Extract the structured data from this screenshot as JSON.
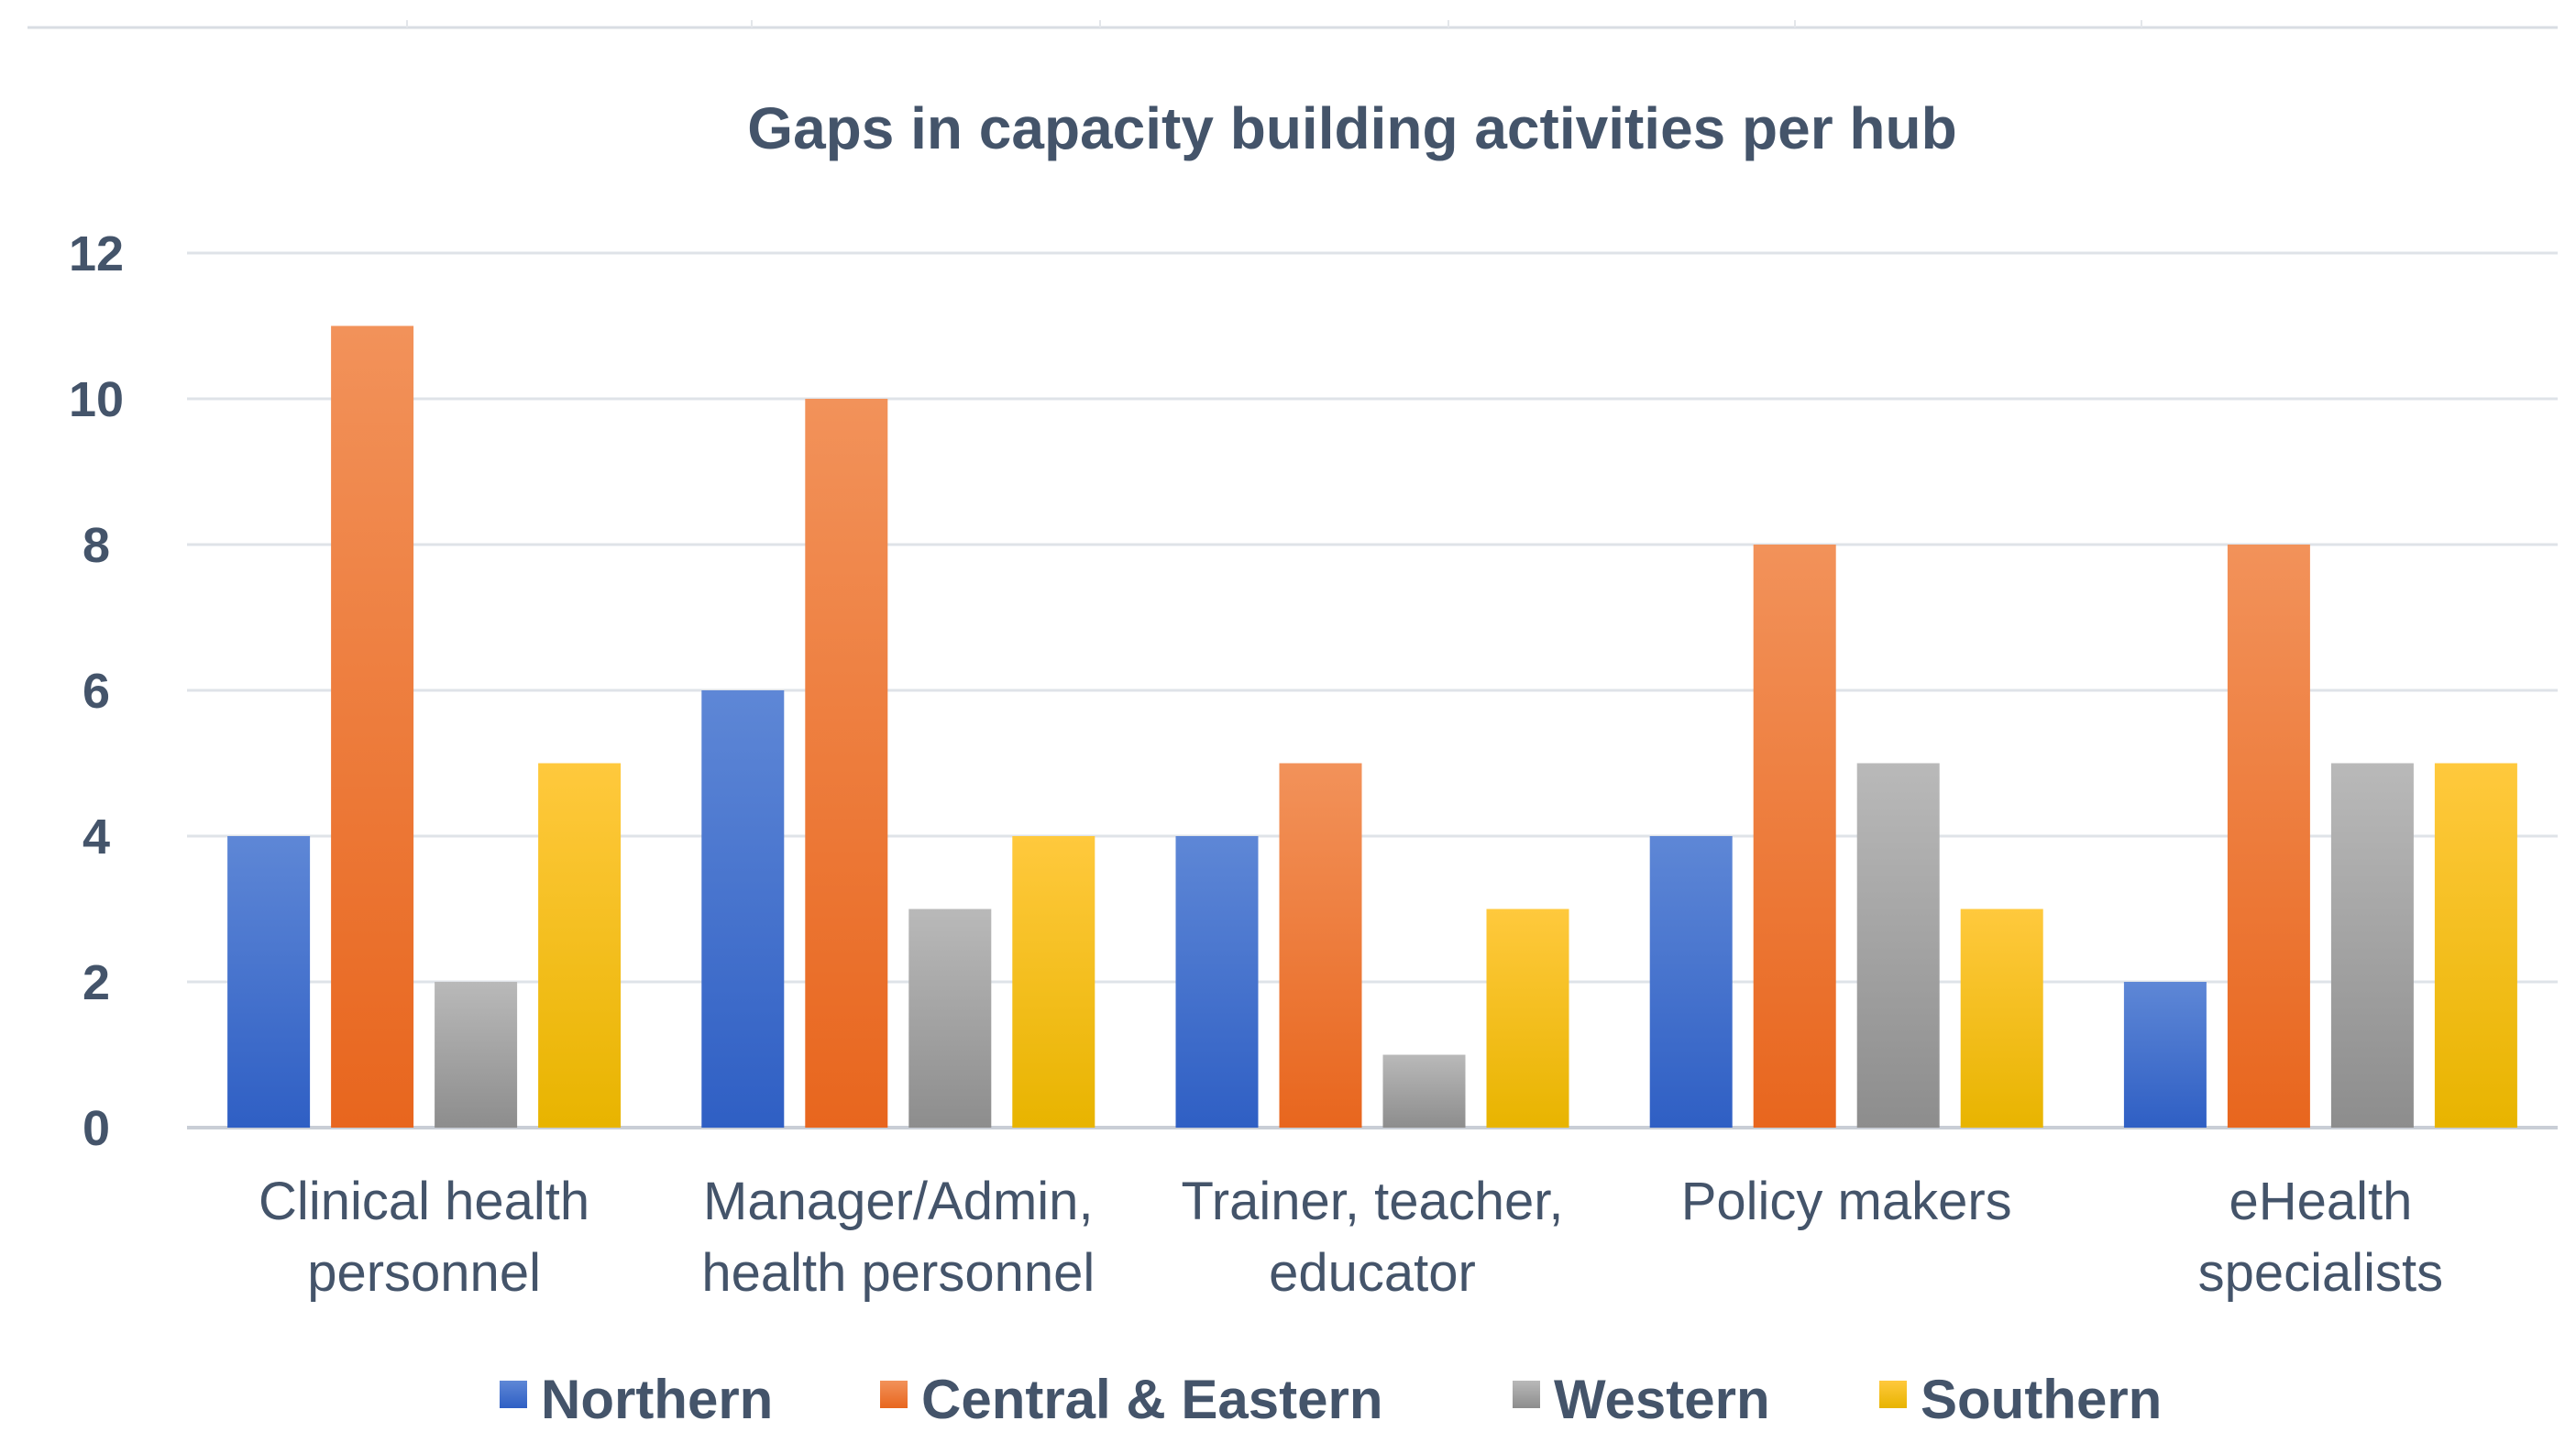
{
  "chart_data": {
    "type": "bar",
    "title": "Gaps in capacity building activities per hub",
    "xlabel": "",
    "ylabel": "",
    "ylim": [
      0,
      12
    ],
    "yticks": [
      0,
      2,
      4,
      6,
      8,
      10,
      12
    ],
    "grid": true,
    "legend_position": "bottom",
    "categories": [
      [
        "Clinical health",
        "personnel"
      ],
      [
        "Manager/Admin,",
        "health personnel"
      ],
      [
        "Trainer, teacher,",
        "educator"
      ],
      [
        "Policy makers"
      ],
      [
        "eHealth",
        "specialists"
      ]
    ],
    "series": [
      {
        "name": "Northern",
        "values": [
          4,
          6,
          4,
          4,
          2
        ],
        "color_top": "#5e87d6",
        "color_bottom": "#2f5fc4"
      },
      {
        "name": "Central & Eastern",
        "values": [
          11,
          10,
          5,
          8,
          8
        ],
        "color_top": "#f2925a",
        "color_bottom": "#e8661e"
      },
      {
        "name": "Western",
        "values": [
          2,
          3,
          1,
          5,
          5
        ],
        "color_top": "#b9b9b9",
        "color_bottom": "#8d8d8d"
      },
      {
        "name": "Southern",
        "values": [
          5,
          4,
          3,
          3,
          5
        ],
        "color_top": "#ffc93d",
        "color_bottom": "#e8b400"
      }
    ]
  }
}
